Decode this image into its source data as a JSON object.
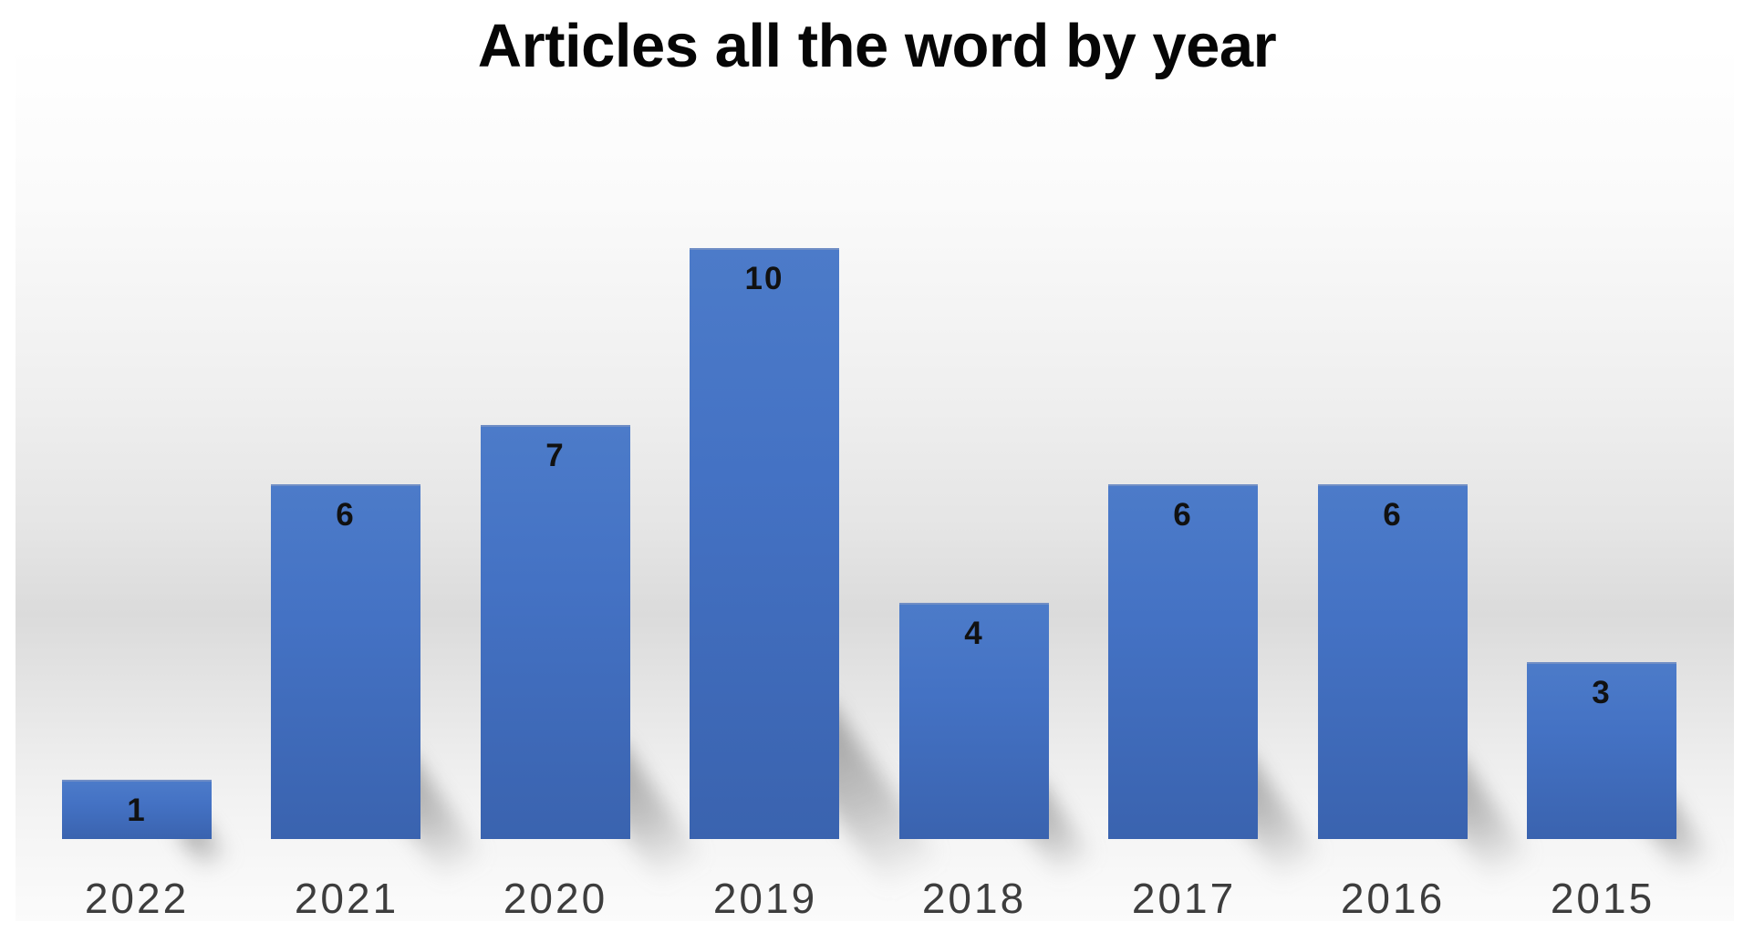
{
  "chart_data": {
    "type": "bar",
    "title": "Articles all the word by year",
    "categories": [
      "2022",
      "2021",
      "2020",
      "2019",
      "2018",
      "2017",
      "2016",
      "2015"
    ],
    "values": [
      1,
      6,
      7,
      10,
      4,
      6,
      6,
      3
    ],
    "xlabel": "",
    "ylabel": "",
    "ylim": [
      0,
      10
    ],
    "grid": false,
    "legend": false,
    "y_axis_visible": false,
    "x_axis_line_visible": false,
    "data_labels_position": "inside-end",
    "bar_color": "#4472C4",
    "bar_shadow": "perspective-below-right",
    "data_label_color": "#111111",
    "category_label_color": "#3d3d3d",
    "title_color": "#060606",
    "background_style": "white frame with gray studio gradient backdrop"
  }
}
